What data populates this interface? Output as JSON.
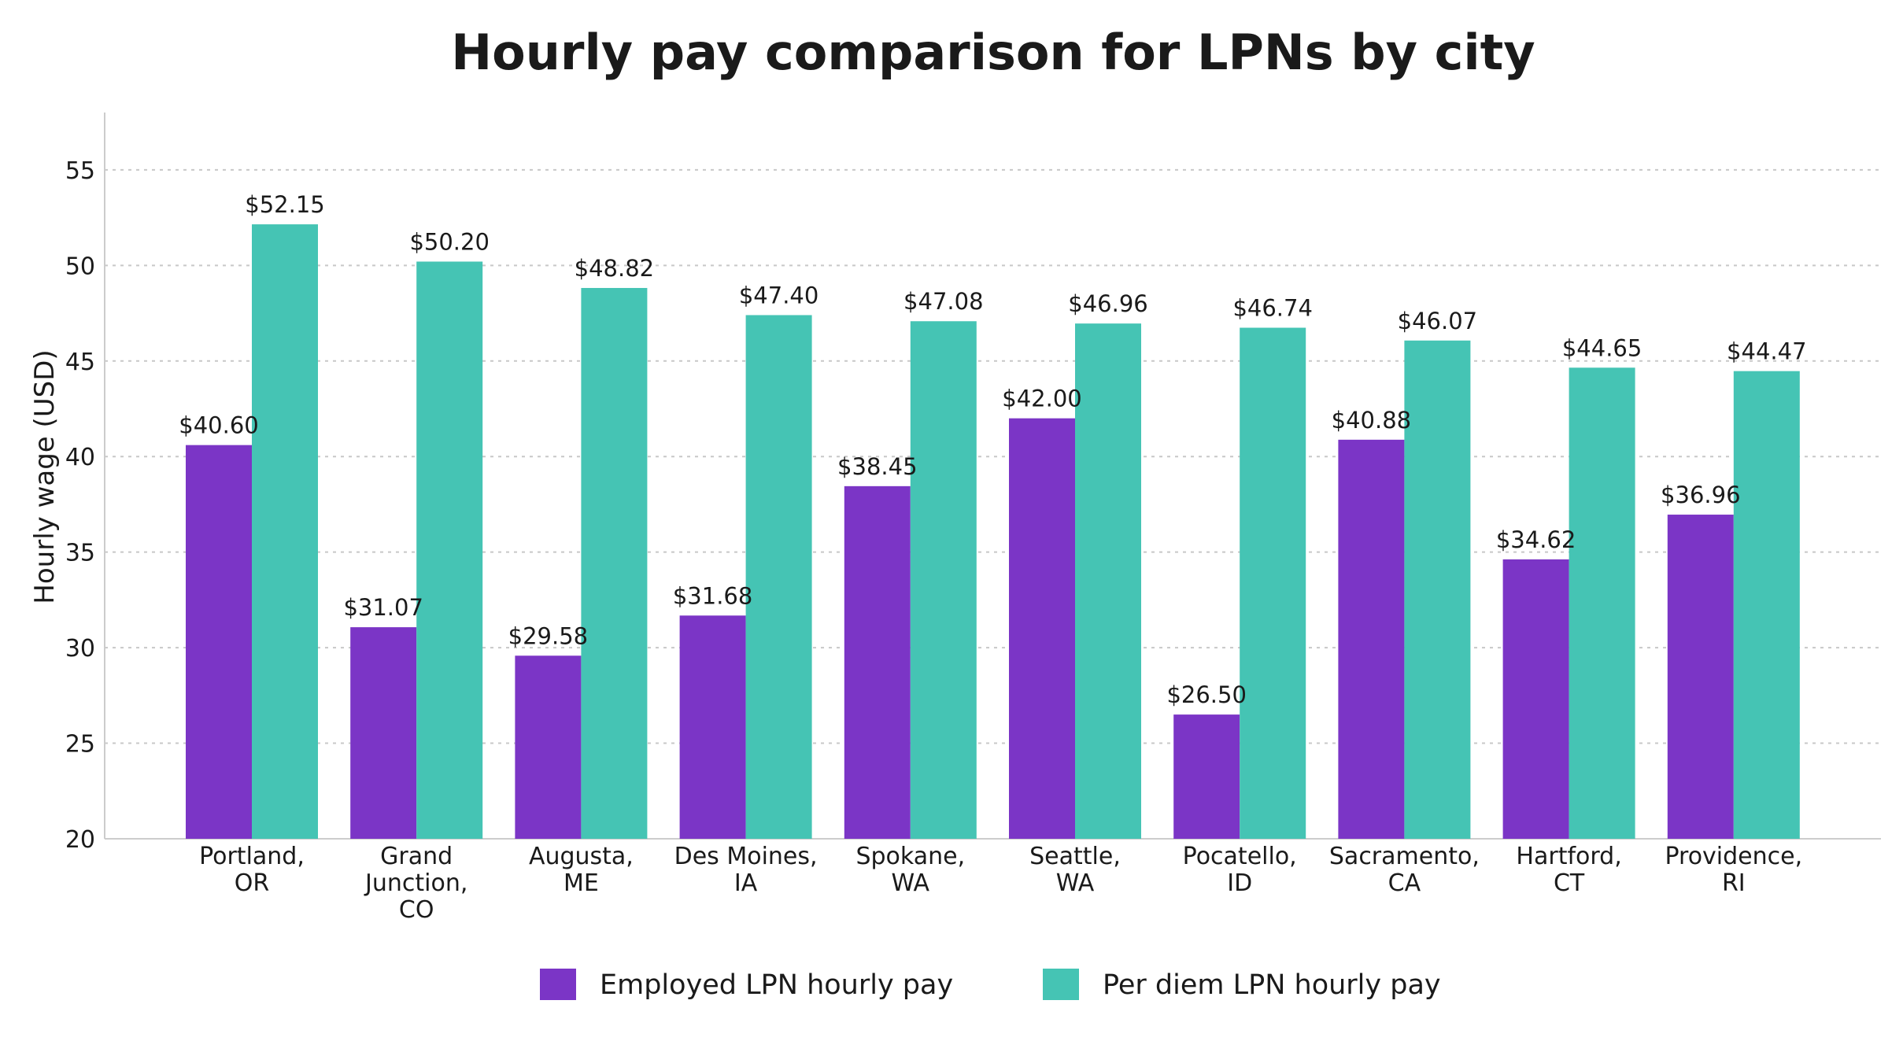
{
  "chart_data": {
    "type": "bar",
    "title": "Hourly pay comparison for LPNs by city",
    "xlabel": "",
    "ylabel": "Hourly wage (USD)",
    "ylim": [
      20,
      58
    ],
    "yticks": [
      20,
      25,
      30,
      35,
      40,
      45,
      50,
      55
    ],
    "grid": true,
    "legend_position": "bottom",
    "categories": [
      [
        "Portland,",
        "OR"
      ],
      [
        "Grand",
        "Junction,",
        "CO"
      ],
      [
        "Augusta,",
        "ME"
      ],
      [
        "Des Moines,",
        "IA"
      ],
      [
        "Spokane,",
        "WA"
      ],
      [
        "Seattle,",
        "WA"
      ],
      [
        "Pocatello,",
        "ID"
      ],
      [
        "Sacramento,",
        "CA"
      ],
      [
        "Hartford,",
        "CT"
      ],
      [
        "Providence,",
        "RI"
      ]
    ],
    "series": [
      {
        "name": "Employed LPN hourly pay",
        "color": "#7b35c6",
        "values": [
          40.6,
          31.07,
          29.58,
          31.68,
          38.45,
          42.0,
          26.5,
          40.88,
          34.62,
          36.96
        ],
        "labels": [
          "$40.60",
          "$31.07",
          "$29.58",
          "$31.68",
          "$38.45",
          "$42.00",
          "$26.50",
          "$40.88",
          "$34.62",
          "$36.96"
        ]
      },
      {
        "name": "Per diem LPN hourly pay",
        "color": "#45c4b4",
        "values": [
          52.15,
          50.2,
          48.82,
          47.4,
          47.08,
          46.96,
          46.74,
          46.07,
          44.65,
          44.47
        ],
        "labels": [
          "$52.15",
          "$50.20",
          "$48.82",
          "$47.40",
          "$47.08",
          "$46.96",
          "$46.74",
          "$46.07",
          "$44.65",
          "$44.47"
        ]
      }
    ]
  }
}
